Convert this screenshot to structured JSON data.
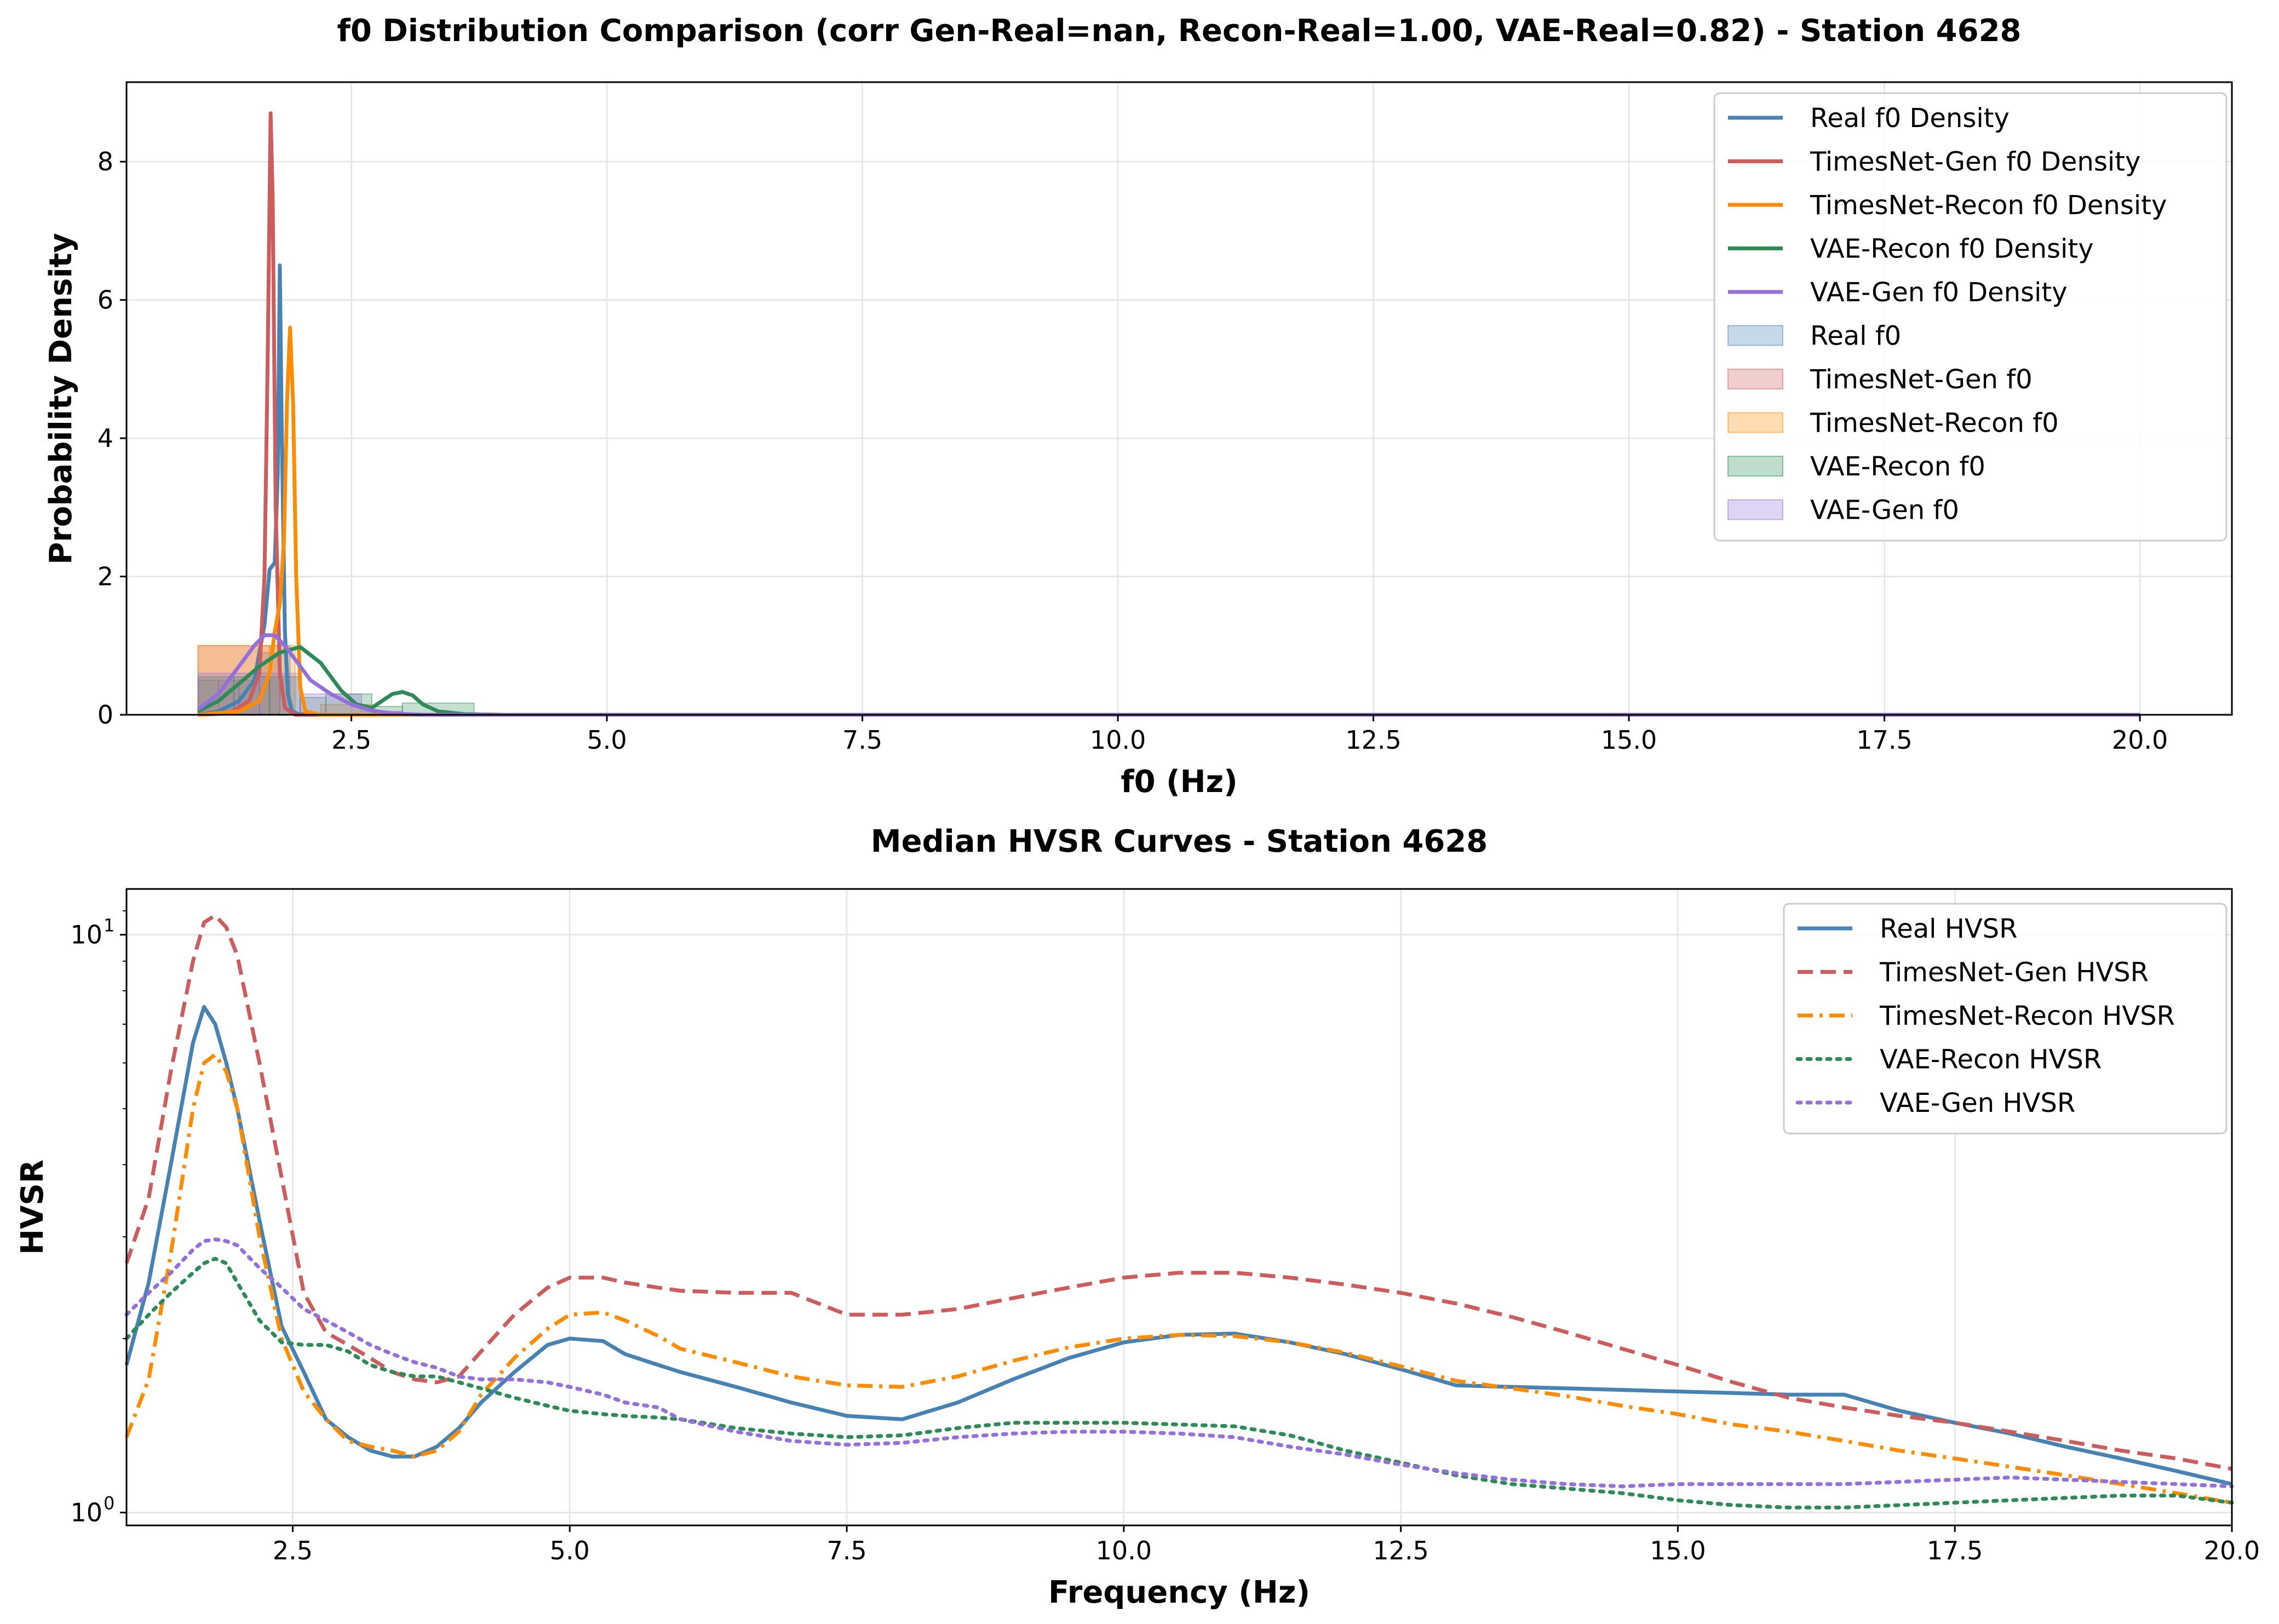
{
  "colors": {
    "real": "#4682b4",
    "timesnet_gen": "#cd5c5c",
    "timesnet_recon": "#ff8c00",
    "vae_recon": "#2e8b57",
    "vae_gen": "#9370db"
  },
  "chart_data": [
    {
      "type": "histogram+density",
      "title": "f0 Distribution Comparison (corr Gen-Real=nan, Recon-Real=1.00, VAE-Real=0.82) - Station 4628",
      "xlabel": "f0 (Hz)",
      "ylabel": "Probability Density",
      "xlim": [
        0.3,
        20.9
      ],
      "ylim": [
        0,
        9.15
      ],
      "x_ticks": [
        2.5,
        5.0,
        7.5,
        10.0,
        12.5,
        15.0,
        17.5,
        20.0
      ],
      "x_tick_labels": [
        "2.5",
        "5.0",
        "7.5",
        "10.0",
        "12.5",
        "15.0",
        "17.5",
        "20.0"
      ],
      "y_ticks": [
        0,
        2,
        4,
        6,
        8
      ],
      "y_tick_labels": [
        "0",
        "2",
        "4",
        "6",
        "8"
      ],
      "grid": true,
      "legend_position": "top-right",
      "density_series": [
        {
          "name": "Real f0 Density",
          "color": "real",
          "x": [
            1.0,
            1.2,
            1.4,
            1.55,
            1.65,
            1.7,
            1.75,
            1.78,
            1.8,
            1.82,
            1.85,
            1.88,
            1.92,
            1.98,
            2.1,
            2.5,
            3.0,
            5.0,
            10.0,
            15.0,
            20.0
          ],
          "y": [
            0.0,
            0.05,
            0.2,
            0.5,
            1.3,
            2.1,
            2.2,
            3.5,
            6.5,
            4.0,
            1.2,
            0.3,
            0.05,
            0.01,
            0.0,
            0.0,
            0.0,
            0.0,
            0.0,
            0.0,
            0.0
          ]
        },
        {
          "name": "TimesNet-Gen f0 Density",
          "color": "timesnet_gen",
          "x": [
            1.0,
            1.3,
            1.5,
            1.6,
            1.65,
            1.68,
            1.71,
            1.73,
            1.76,
            1.8,
            1.85,
            1.95,
            2.2,
            3.0,
            5.0,
            10.0,
            15.0,
            20.0
          ],
          "y": [
            0.0,
            0.02,
            0.2,
            0.6,
            2.0,
            5.0,
            8.7,
            7.5,
            3.0,
            0.6,
            0.1,
            0.0,
            0.0,
            0.0,
            0.0,
            0.0,
            0.0,
            0.0
          ]
        },
        {
          "name": "TimesNet-Recon f0 Density",
          "color": "timesnet_recon",
          "x": [
            1.0,
            1.4,
            1.6,
            1.7,
            1.75,
            1.8,
            1.84,
            1.87,
            1.9,
            1.93,
            1.96,
            2.0,
            2.05,
            2.2,
            3.0,
            5.0,
            10.0,
            15.0,
            20.0
          ],
          "y": [
            0.0,
            0.05,
            0.2,
            0.6,
            1.2,
            1.6,
            2.5,
            4.5,
            5.6,
            4.5,
            2.0,
            0.4,
            0.05,
            0.0,
            0.0,
            0.0,
            0.0,
            0.0,
            0.0
          ]
        },
        {
          "name": "VAE-Recon f0 Density",
          "color": "vae_recon",
          "x": [
            1.0,
            1.2,
            1.4,
            1.6,
            1.8,
            2.0,
            2.2,
            2.4,
            2.55,
            2.7,
            2.8,
            2.9,
            3.0,
            3.1,
            3.2,
            3.35,
            3.6,
            4.0,
            10.0,
            15.0,
            20.0
          ],
          "y": [
            0.05,
            0.2,
            0.45,
            0.7,
            0.9,
            0.98,
            0.75,
            0.35,
            0.15,
            0.1,
            0.2,
            0.3,
            0.33,
            0.28,
            0.15,
            0.05,
            0.01,
            0.0,
            0.0,
            0.0,
            0.0
          ]
        },
        {
          "name": "VAE-Gen f0 Density",
          "color": "vae_gen",
          "x": [
            1.0,
            1.2,
            1.4,
            1.55,
            1.65,
            1.75,
            1.85,
            1.95,
            2.1,
            2.3,
            2.5,
            2.7,
            2.9,
            3.2,
            3.6,
            5.0,
            10.0,
            15.0,
            20.0
          ],
          "y": [
            0.08,
            0.3,
            0.7,
            1.0,
            1.15,
            1.15,
            1.0,
            0.8,
            0.5,
            0.3,
            0.15,
            0.06,
            0.02,
            0.0,
            0.0,
            0.0,
            0.0,
            0.0,
            0.0
          ]
        }
      ],
      "histograms": [
        {
          "name": "Real f0",
          "color": "real",
          "bins": [
            [
              1.0,
              1.2,
              0.5
            ],
            [
              1.2,
              1.4,
              0.5
            ],
            [
              1.4,
              1.6,
              0.5
            ],
            [
              1.6,
              1.8,
              0.9
            ],
            [
              1.8,
              1.9,
              1.0
            ]
          ]
        },
        {
          "name": "TimesNet-Gen f0",
          "color": "timesnet_gen",
          "bins": [
            [
              1.0,
              1.6,
              1.0
            ],
            [
              1.6,
              1.8,
              1.0
            ]
          ]
        },
        {
          "name": "TimesNet-Recon f0",
          "color": "timesnet_recon",
          "bins": [
            [
              1.0,
              1.7,
              1.0
            ],
            [
              1.7,
              1.95,
              1.0
            ],
            [
              2.2,
              2.7,
              0.15
            ]
          ]
        },
        {
          "name": "VAE-Recon f0",
          "color": "vae_recon",
          "bins": [
            [
              1.0,
              1.35,
              0.55
            ],
            [
              1.35,
              1.7,
              0.55
            ],
            [
              1.7,
              2.0,
              0.55
            ],
            [
              2.0,
              2.25,
              0.25
            ],
            [
              2.25,
              2.7,
              0.3
            ],
            [
              2.7,
              3.0,
              0.12
            ],
            [
              3.0,
              3.7,
              0.17
            ]
          ]
        },
        {
          "name": "VAE-Gen f0",
          "color": "vae_gen",
          "bins": [
            [
              1.0,
              1.6,
              0.6
            ],
            [
              1.6,
              2.0,
              0.6
            ],
            [
              2.0,
              2.6,
              0.3
            ],
            [
              2.6,
              3.0,
              0.05
            ]
          ]
        }
      ]
    },
    {
      "type": "line",
      "title": "Median HVSR Curves - Station 4628",
      "xlabel": "Frequency (Hz)",
      "ylabel": "HVSR",
      "xlim": [
        1.0,
        20.0
      ],
      "ylim": [
        0.95,
        12.0
      ],
      "y_scale": "log",
      "x_ticks": [
        2.5,
        5.0,
        7.5,
        10.0,
        12.5,
        15.0,
        17.5,
        20.0
      ],
      "x_tick_labels": [
        "2.5",
        "5.0",
        "7.5",
        "10.0",
        "12.5",
        "15.0",
        "17.5",
        "20.0"
      ],
      "y_ticks": [
        1,
        10
      ],
      "grid": true,
      "legend_position": "top-right",
      "x": [
        1.0,
        1.2,
        1.4,
        1.6,
        1.7,
        1.8,
        1.9,
        2.0,
        2.2,
        2.4,
        2.6,
        2.8,
        3.0,
        3.2,
        3.4,
        3.6,
        3.8,
        4.0,
        4.2,
        4.5,
        4.8,
        5.0,
        5.3,
        5.5,
        5.8,
        6.0,
        6.5,
        7.0,
        7.5,
        8.0,
        8.5,
        9.0,
        9.5,
        10.0,
        10.5,
        11.0,
        11.5,
        12.0,
        12.5,
        13.0,
        13.5,
        14.0,
        14.5,
        15.0,
        15.5,
        16.0,
        16.5,
        17.0,
        17.5,
        18.0,
        18.5,
        19.0,
        19.5,
        20.0
      ],
      "series": [
        {
          "name": "Real HVSR",
          "color": "real",
          "dash": "solid",
          "values": [
            1.8,
            2.5,
            4.0,
            6.5,
            7.5,
            7.0,
            6.0,
            5.0,
            3.2,
            2.1,
            1.75,
            1.45,
            1.35,
            1.28,
            1.25,
            1.25,
            1.3,
            1.4,
            1.55,
            1.75,
            1.95,
            2.0,
            1.98,
            1.88,
            1.8,
            1.75,
            1.65,
            1.55,
            1.47,
            1.45,
            1.55,
            1.7,
            1.85,
            1.97,
            2.03,
            2.04,
            1.97,
            1.88,
            1.77,
            1.66,
            1.65,
            1.64,
            1.63,
            1.62,
            1.61,
            1.6,
            1.6,
            1.5,
            1.43,
            1.37,
            1.3,
            1.24,
            1.18,
            1.12
          ]
        },
        {
          "name": "TimesNet-Gen HVSR",
          "color": "timesnet_gen",
          "dash": "dashed",
          "values": [
            2.7,
            3.5,
            5.8,
            9.0,
            10.5,
            10.8,
            10.3,
            9.2,
            6.0,
            3.8,
            2.4,
            2.05,
            1.95,
            1.85,
            1.75,
            1.7,
            1.68,
            1.72,
            1.9,
            2.2,
            2.45,
            2.55,
            2.55,
            2.5,
            2.45,
            2.42,
            2.4,
            2.4,
            2.2,
            2.2,
            2.25,
            2.35,
            2.45,
            2.55,
            2.6,
            2.6,
            2.55,
            2.48,
            2.4,
            2.3,
            2.18,
            2.05,
            1.92,
            1.8,
            1.68,
            1.58,
            1.52,
            1.47,
            1.43,
            1.38,
            1.33,
            1.28,
            1.24,
            1.19
          ]
        },
        {
          "name": "TimesNet-Recon HVSR",
          "color": "timesnet_recon",
          "dash": "dashdot",
          "values": [
            1.35,
            1.7,
            2.8,
            5.0,
            6.0,
            6.2,
            5.8,
            5.0,
            3.0,
            2.0,
            1.62,
            1.45,
            1.33,
            1.3,
            1.28,
            1.25,
            1.28,
            1.38,
            1.6,
            1.85,
            2.08,
            2.2,
            2.22,
            2.15,
            2.02,
            1.92,
            1.82,
            1.72,
            1.66,
            1.65,
            1.72,
            1.83,
            1.93,
            2.0,
            2.03,
            2.02,
            1.97,
            1.89,
            1.79,
            1.69,
            1.64,
            1.59,
            1.53,
            1.48,
            1.42,
            1.38,
            1.33,
            1.28,
            1.24,
            1.2,
            1.16,
            1.12,
            1.08,
            1.04
          ]
        },
        {
          "name": "VAE-Recon HVSR",
          "color": "vae_recon",
          "dash": "dotted",
          "values": [
            2.0,
            2.2,
            2.4,
            2.6,
            2.7,
            2.75,
            2.7,
            2.5,
            2.15,
            1.97,
            1.95,
            1.95,
            1.9,
            1.8,
            1.75,
            1.72,
            1.72,
            1.68,
            1.64,
            1.58,
            1.53,
            1.5,
            1.48,
            1.47,
            1.46,
            1.45,
            1.4,
            1.37,
            1.35,
            1.36,
            1.4,
            1.43,
            1.43,
            1.43,
            1.42,
            1.41,
            1.36,
            1.28,
            1.22,
            1.16,
            1.12,
            1.1,
            1.08,
            1.05,
            1.03,
            1.02,
            1.02,
            1.03,
            1.04,
            1.05,
            1.06,
            1.07,
            1.07,
            1.04
          ]
        },
        {
          "name": "VAE-Gen HVSR",
          "color": "vae_gen",
          "dash": "dotted",
          "values": [
            2.2,
            2.4,
            2.6,
            2.85,
            2.95,
            2.97,
            2.95,
            2.9,
            2.65,
            2.45,
            2.25,
            2.15,
            2.05,
            1.95,
            1.88,
            1.82,
            1.78,
            1.72,
            1.7,
            1.7,
            1.68,
            1.65,
            1.6,
            1.55,
            1.52,
            1.45,
            1.38,
            1.33,
            1.31,
            1.32,
            1.35,
            1.37,
            1.38,
            1.38,
            1.37,
            1.35,
            1.3,
            1.26,
            1.21,
            1.17,
            1.14,
            1.12,
            1.11,
            1.12,
            1.12,
            1.12,
            1.12,
            1.13,
            1.14,
            1.15,
            1.14,
            1.13,
            1.12,
            1.11
          ]
        }
      ]
    }
  ]
}
